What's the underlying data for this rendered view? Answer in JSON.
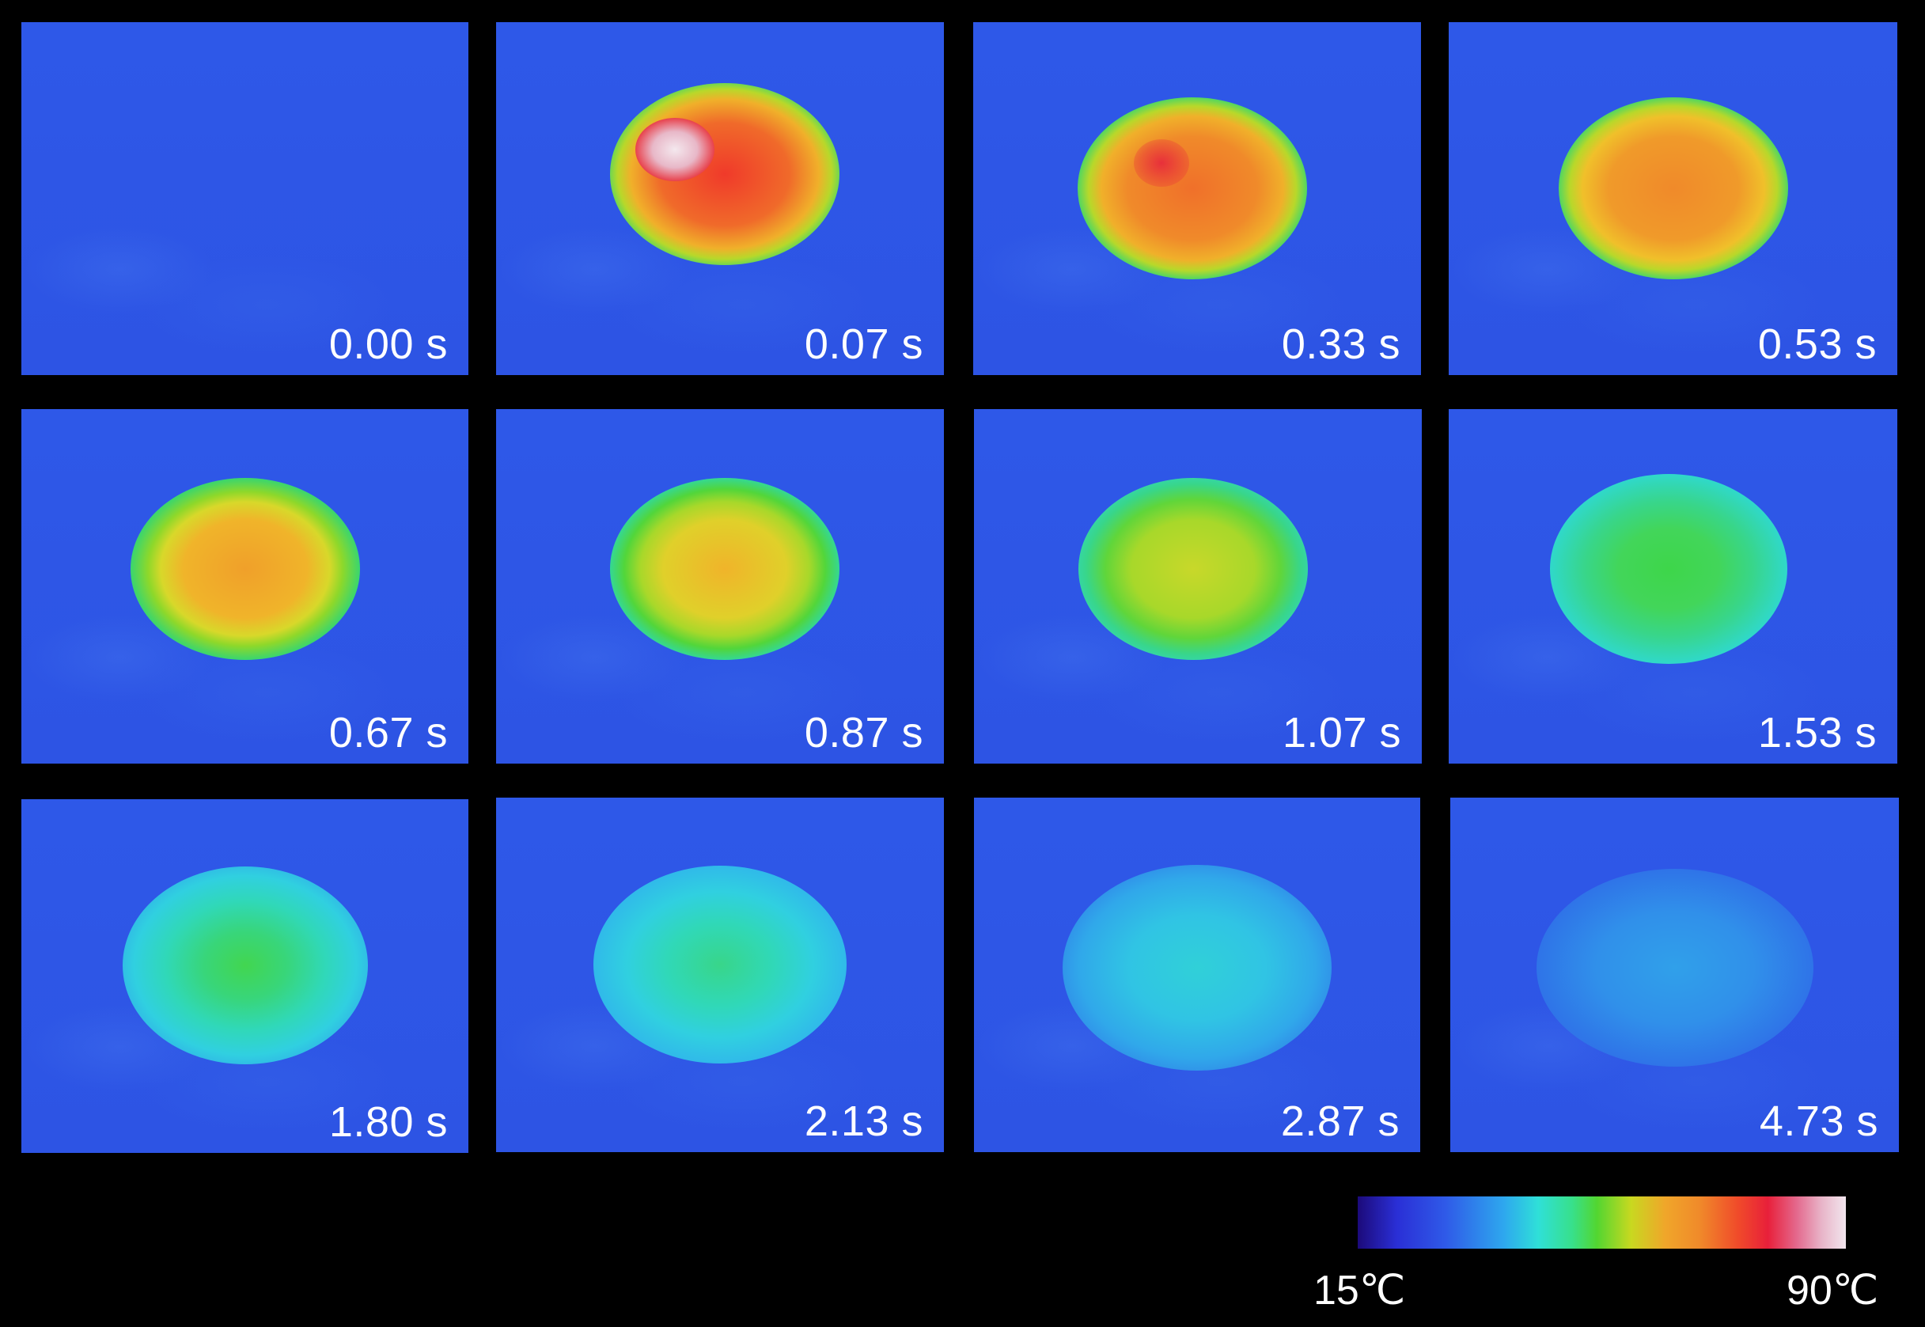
{
  "frames": [
    {
      "time": "0.00 s"
    },
    {
      "time": "0.07 s"
    },
    {
      "time": "0.33 s"
    },
    {
      "time": "0.53 s"
    },
    {
      "time": "0.67 s"
    },
    {
      "time": "0.87 s"
    },
    {
      "time": "1.07 s"
    },
    {
      "time": "1.53 s"
    },
    {
      "time": "1.80 s"
    },
    {
      "time": "2.13 s"
    },
    {
      "time": "2.87 s"
    },
    {
      "time": "4.73 s"
    }
  ],
  "colorbar": {
    "min_label": "15℃",
    "max_label": "90℃",
    "colors": [
      "#1c0a7a",
      "#2f5ae8",
      "#2fe0d8",
      "#52d631",
      "#f0a62a",
      "#e8203a",
      "#f2e6ee"
    ]
  }
}
